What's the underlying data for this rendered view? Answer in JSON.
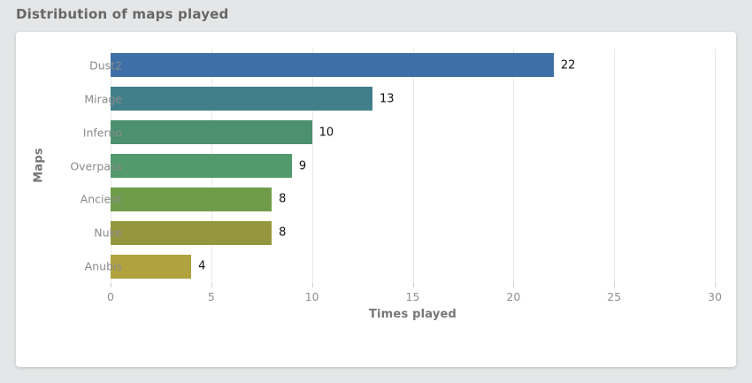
{
  "header": {
    "title": "Distribution of maps played"
  },
  "colors": {
    "page_background": "#e5e6e7",
    "panel_background": "#ffffff",
    "gridline": "#e8e8e8",
    "tick": "#cfcfcf",
    "category_text": "#8a8a8a",
    "axis_title_text": "#767676",
    "value_text": "#111111"
  },
  "chart_data": {
    "type": "bar",
    "orientation": "horizontal",
    "title": "Distribution of maps played",
    "categories": [
      "Dust2",
      "Mirage",
      "Inferno",
      "Overpass",
      "Ancient",
      "Nuke",
      "Anubis"
    ],
    "values": [
      22,
      13,
      10,
      9,
      8,
      8,
      4
    ],
    "bar_colors": [
      "#3E6FA7",
      "#41808B",
      "#4C9070",
      "#52996B",
      "#6F9C49",
      "#95973E",
      "#AFA23F"
    ],
    "value_labels": [
      "22",
      "13",
      "10",
      "9",
      "8",
      "8",
      "4"
    ],
    "xlabel": "Times played",
    "ylabel": "Maps",
    "xlim": [
      0,
      30
    ],
    "xticks": [
      0,
      5,
      10,
      15,
      20,
      25,
      30
    ],
    "grid": true,
    "legend": false
  }
}
